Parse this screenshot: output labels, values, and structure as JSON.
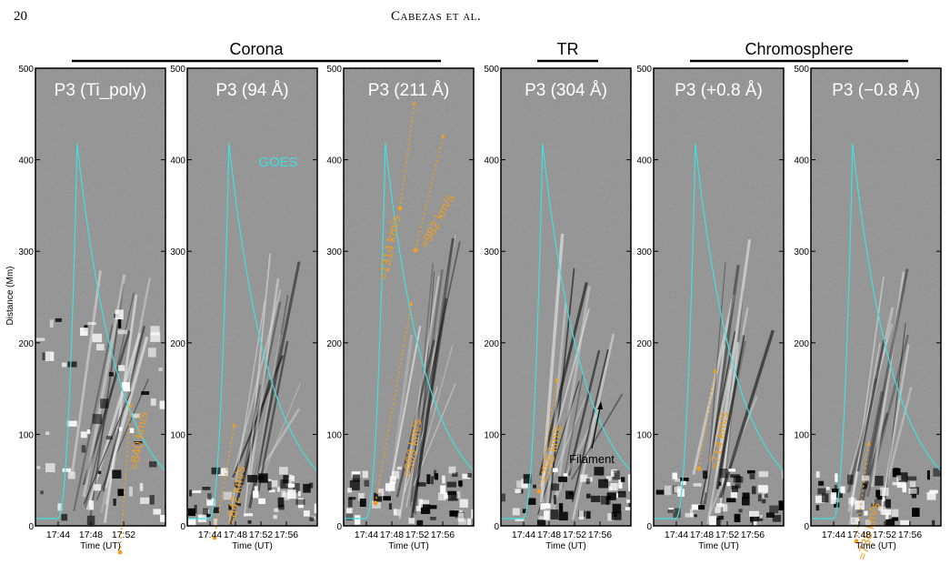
{
  "page_header": {
    "page_number": "20",
    "running_head": "Cabezas et al."
  },
  "groups": [
    {
      "label": "Corona",
      "panels": [
        0,
        2
      ]
    },
    {
      "label": "TR",
      "panels": [
        3,
        3
      ]
    },
    {
      "label": "Chromosphere",
      "panels": [
        4,
        5
      ]
    }
  ],
  "y_axis": {
    "label": "Distance (Mm)",
    "ticks": [
      "0",
      "100",
      "200",
      "300",
      "400",
      "500"
    ],
    "range": [
      0,
      500
    ]
  },
  "x_axis_label": "Time (UT)",
  "goes_label": "GOES",
  "filament_label": "Filament",
  "colors": {
    "goes_curve": "#3fe0e0",
    "speed_annotation": "#f0a020",
    "panel_bg": "#8c8c8c"
  },
  "chart_data": [
    {
      "type": "heatmap",
      "title": "P3 (Ti_poly)",
      "x_ticks": [
        "17:44",
        "17:48",
        "17:52"
      ],
      "speed_label": "≈840 km/s"
    },
    {
      "type": "heatmap",
      "title": "P3 (94 Å)",
      "x_ticks": [
        "17:44",
        "17:48",
        "17:52",
        "17:56"
      ],
      "speed_label": "≈842 km/s"
    },
    {
      "type": "heatmap",
      "title": "P3 (211 Å)",
      "x_ticks": [
        "17:44",
        "17:48",
        "17:52",
        "17:56"
      ],
      "speed_label": "≈969 km/s",
      "extra_speed_labels": [
        "≈1314 km/s",
        "≈982 km/s"
      ]
    },
    {
      "type": "heatmap",
      "title": "P3 (304 Å)",
      "x_ticks": [
        "17:44",
        "17:48",
        "17:52",
        "17:56"
      ],
      "speed_label": "≈758 km/s"
    },
    {
      "type": "heatmap",
      "title": "P3 (+0.8 Å)",
      "x_ticks": [
        "17:44",
        "17:48",
        "17:52",
        "17:56"
      ],
      "speed_label": "≈714 km/s"
    },
    {
      "type": "heatmap",
      "title": "P3 (−0.8 Å)",
      "x_ticks": [
        "17:44",
        "17:48",
        "17:52",
        "17:56"
      ],
      "speed_label": "≈738 km/s"
    }
  ]
}
